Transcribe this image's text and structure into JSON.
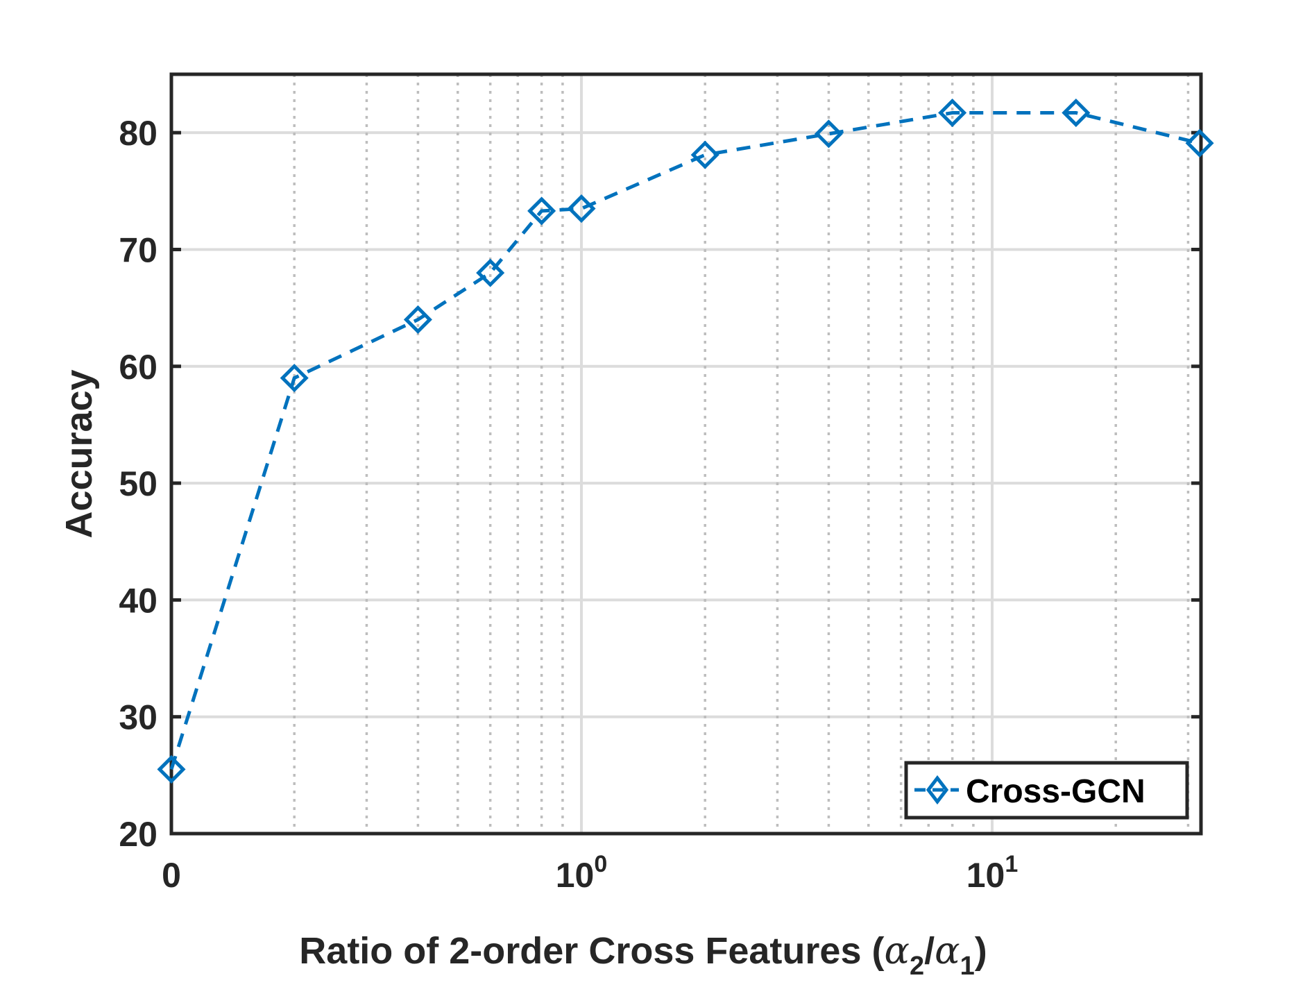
{
  "chart_data": {
    "type": "line",
    "xscale": "log",
    "x_tick_labels": [
      "0",
      "10",
      "10"
    ],
    "x_tick_label_exponents": [
      "",
      "0",
      "1"
    ],
    "y_tick_labels": [
      "20",
      "30",
      "40",
      "50",
      "60",
      "70",
      "80"
    ],
    "ylim": [
      20,
      85
    ],
    "xlabel": "Ratio of 2-order Cross Features (",
    "xlabel_symbols": [
      "α",
      "2",
      "/",
      "α",
      "1",
      ")"
    ],
    "ylabel": "Accuracy",
    "grid": true,
    "legend_position": "bottom-right",
    "series": [
      {
        "name": "Cross-GCN",
        "color": "#0072BD",
        "line_style": "dashed",
        "marker": "diamond",
        "x": [
          0,
          0.2,
          0.4,
          0.6,
          0.8,
          1,
          2,
          4,
          8,
          16,
          32
        ],
        "y": [
          25.5,
          59,
          64,
          68,
          73.3,
          73.5,
          78.1,
          79.9,
          81.7,
          81.7,
          79.1
        ]
      }
    ]
  }
}
